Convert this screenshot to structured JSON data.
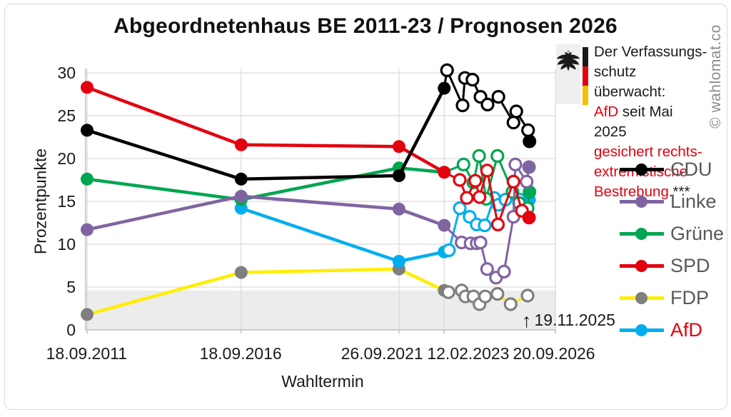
{
  "title": "Abgeordnetenhaus BE 2011-23 / Prognosen 2026",
  "watermark": "© wahlomat.co",
  "annotation": {
    "arrow": "↑",
    "date": "19.11.2025"
  },
  "infobox": {
    "lines": [
      {
        "spans": [
          {
            "text": "Der Verfassungs-",
            "color": "#1a1a1a"
          }
        ]
      },
      {
        "spans": [
          {
            "text": "schutz überwacht:",
            "color": "#1a1a1a"
          }
        ]
      },
      {
        "spans": [
          {
            "text": "AfD",
            "color": "#e3000f"
          },
          {
            "text": " seit Mai 2025",
            "color": "#1a1a1a"
          }
        ]
      },
      {
        "spans": [
          {
            "text": "gesichert rechts-",
            "color": "#e3000f"
          }
        ]
      },
      {
        "spans": [
          {
            "text": "extremistische",
            "color": "#e3000f"
          }
        ]
      },
      {
        "spans": [
          {
            "text": "Bestrebung",
            "color": "#e3000f"
          },
          {
            "text": ".***",
            "color": "#1a1a1a"
          }
        ]
      }
    ]
  },
  "legend": {
    "items": [
      {
        "series": "CDU",
        "text_color": "#595959"
      },
      {
        "series": "Linke",
        "text_color": "#595959"
      },
      {
        "series": "Grüne",
        "text_color": "#595959"
      },
      {
        "series": "SPD",
        "text_color": "#595959"
      },
      {
        "series": "FDP",
        "text_color": "#595959"
      },
      {
        "series": "AfD",
        "text_color": "#e3000f"
      }
    ]
  },
  "chart_data": {
    "type": "line",
    "title": "Abgeordnetenhaus BE 2011-23 / Prognosen 2026",
    "xlabel": "Wahltermin",
    "ylabel": "Prozentpunkte",
    "ylim": [
      0,
      30
    ],
    "yticks": [
      0,
      5,
      10,
      15,
      20,
      25,
      30
    ],
    "x_note": "t = fraction of time axis from 18.09.2011 (0) to 20.09.2026 (1); filled end markers = latest poll 19.11.2025",
    "xticks": [
      {
        "label": "18.09.2011",
        "t": 0.003,
        "label_t": 0.002
      },
      {
        "label": "18.09.2016",
        "t": 0.33,
        "label_t": 0.329
      },
      {
        "label": "26.09.2021",
        "t": 0.665,
        "label_t": 0.629
      },
      {
        "label": "12.02.2023",
        "t": 0.761,
        "label_t": 0.812
      },
      {
        "label": "20.09.2026",
        "t": 0.997,
        "label_t": 0.994
      }
    ],
    "threshold_band": {
      "from": 0,
      "to": 4.6,
      "color": "#ececec"
    },
    "grid_color": "#d9d9d9",
    "axis_color": "#bfbfbf",
    "legend_position": "right",
    "series": [
      {
        "name": "FDP",
        "color": "#ffee00",
        "marker_color": "#7f7f7f",
        "elections": [
          [
            0.003,
            1.8
          ],
          [
            0.33,
            6.7
          ],
          [
            0.665,
            7.1
          ],
          [
            0.761,
            4.6
          ]
        ],
        "polls": [
          [
            0.77,
            4.4
          ],
          [
            0.798,
            4.6
          ],
          [
            0.806,
            3.9
          ],
          [
            0.823,
            3.9
          ],
          [
            0.836,
            3.0
          ],
          [
            0.848,
            3.9
          ],
          [
            0.874,
            4.2
          ],
          [
            0.902,
            3.0
          ],
          [
            0.938,
            4.0
          ]
        ],
        "final": null
      },
      {
        "name": "AfD",
        "color": "#00aeef",
        "marker_color": "#00aeef",
        "elections": [
          [
            0.33,
            14.2
          ],
          [
            0.665,
            8.0
          ],
          [
            0.761,
            9.1
          ]
        ],
        "polls": [
          [
            0.771,
            9.3
          ],
          [
            0.794,
            14.2
          ],
          [
            0.815,
            13.2
          ],
          [
            0.83,
            12.3
          ],
          [
            0.847,
            12.2
          ],
          [
            0.867,
            15.4
          ],
          [
            0.876,
            14.6
          ],
          [
            0.891,
            15.2
          ],
          [
            0.921,
            15.2
          ],
          [
            0.929,
            14.3
          ]
        ],
        "final": [
          0.941,
          15.2
        ]
      },
      {
        "name": "Grüne",
        "color": "#00a651",
        "marker_color": "#00a651",
        "elections": [
          [
            0.003,
            17.6
          ],
          [
            0.33,
            15.2
          ],
          [
            0.665,
            18.9
          ],
          [
            0.761,
            18.4
          ]
        ],
        "polls": [
          [
            0.802,
            19.3
          ],
          [
            0.823,
            17.2
          ],
          [
            0.835,
            20.3
          ],
          [
            0.85,
            15.3
          ],
          [
            0.874,
            20.3
          ],
          [
            0.906,
            16.1
          ],
          [
            0.92,
            14.8
          ],
          [
            0.938,
            14.2
          ]
        ],
        "final": [
          0.942,
          16.1
        ]
      },
      {
        "name": "Linke",
        "color": "#8064a2",
        "marker_color": "#8064a2",
        "elections": [
          [
            0.003,
            11.7
          ],
          [
            0.33,
            15.6
          ],
          [
            0.665,
            14.1
          ],
          [
            0.761,
            12.2
          ]
        ],
        "polls": [
          [
            0.798,
            10.2
          ],
          [
            0.817,
            10.1
          ],
          [
            0.83,
            10.1
          ],
          [
            0.838,
            10.2
          ],
          [
            0.852,
            7.1
          ],
          [
            0.871,
            6.1
          ],
          [
            0.888,
            6.8
          ],
          [
            0.908,
            13.2
          ],
          [
            0.912,
            19.3
          ],
          [
            0.936,
            17.3
          ]
        ],
        "final": [
          0.941,
          19.0
        ]
      },
      {
        "name": "SPD",
        "color": "#e3000f",
        "marker_color": "#e3000f",
        "elections": [
          [
            0.003,
            28.3
          ],
          [
            0.33,
            21.6
          ],
          [
            0.665,
            21.4
          ],
          [
            0.761,
            18.4
          ]
        ],
        "polls": [
          [
            0.794,
            17.5
          ],
          [
            0.809,
            15.4
          ],
          [
            0.827,
            17.4
          ],
          [
            0.836,
            15.5
          ],
          [
            0.852,
            18.6
          ],
          [
            0.875,
            12.3
          ],
          [
            0.908,
            17.3
          ],
          [
            0.926,
            13.9
          ]
        ],
        "final": [
          0.941,
          13.1
        ]
      },
      {
        "name": "CDU",
        "color": "#000000",
        "marker_color": "#000000",
        "elections": [
          [
            0.003,
            23.3
          ],
          [
            0.33,
            17.6
          ],
          [
            0.665,
            18.0
          ],
          [
            0.761,
            28.2
          ]
        ],
        "polls": [
          [
            0.767,
            30.3
          ],
          [
            0.8,
            26.2
          ],
          [
            0.805,
            29.4
          ],
          [
            0.821,
            29.2
          ],
          [
            0.838,
            27.2
          ],
          [
            0.853,
            26.3
          ],
          [
            0.876,
            27.2
          ],
          [
            0.908,
            24.2
          ],
          [
            0.914,
            25.5
          ],
          [
            0.939,
            23.3
          ]
        ],
        "final": [
          0.942,
          22.0
        ]
      }
    ]
  }
}
